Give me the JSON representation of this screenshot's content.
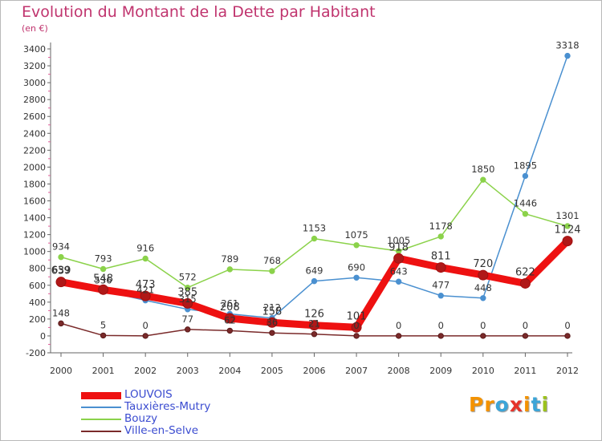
{
  "title": "Evolution du Montant de la Dette par Habitant",
  "subtitle": "(en €)",
  "logo": {
    "letters": [
      "P",
      "r",
      "o",
      "x",
      "i",
      "t",
      "i"
    ],
    "colors": [
      "#f39200",
      "#f39200",
      "#3ba5d8",
      "#e6332a",
      "#f39200",
      "#3ba5d8",
      "#9cc21c"
    ]
  },
  "chart_data": {
    "type": "line",
    "title": "Evolution du Montant de la Dette par Habitant",
    "subtitle": "(en €)",
    "xlabel": "",
    "ylabel": "",
    "x": [
      "2000",
      "2001",
      "2002",
      "2003",
      "2004",
      "2005",
      "2006",
      "2007",
      "2008",
      "2009",
      "2010",
      "2011",
      "2012"
    ],
    "ylim": [
      -200,
      3400
    ],
    "yticks": [
      "-200",
      "0",
      "200",
      "400",
      "600",
      "800",
      "1000",
      "1200",
      "1400",
      "1600",
      "1800",
      "2000",
      "2200",
      "2400",
      "2600",
      "2800",
      "3000",
      "3200",
      "3400"
    ],
    "grid": false,
    "legend_position": "bottom-left",
    "series": [
      {
        "name": "LOUVOIS",
        "color": "#ee1111",
        "values": [
          639,
          548,
          473,
          385,
          208,
          158,
          126,
          101,
          918,
          811,
          720,
          622,
          1124
        ],
        "labels": [
          "639",
          "548",
          "473",
          "385",
          "208",
          "158",
          "126",
          "101",
          "918",
          "811",
          "720",
          "622",
          "1124"
        ]
      },
      {
        "name": "Tauxières-Mutry",
        "color": "#4a90d0",
        "values": [
          659,
          536,
          421,
          315,
          261,
          212,
          649,
          690,
          643,
          477,
          448,
          1895,
          3318
        ],
        "labels": [
          "659",
          "536",
          "421",
          "315",
          "261",
          "212",
          "649",
          "690",
          "643",
          "477",
          "448",
          "1895",
          "3318"
        ]
      },
      {
        "name": "Bouzy",
        "color": "#8bd24a",
        "values": [
          934,
          793,
          916,
          572,
          789,
          768,
          1153,
          1075,
          1005,
          1178,
          1850,
          1446,
          1301
        ],
        "labels": [
          "934",
          "793",
          "916",
          "572",
          "789",
          "768",
          "1153",
          "1075",
          "1005",
          "1178",
          "1850",
          "1446",
          "1301"
        ]
      },
      {
        "name": "Ville-en-Selve",
        "color": "#7a2a2a",
        "values": [
          148,
          5,
          0,
          77,
          62,
          36,
          21,
          0,
          0,
          0,
          0,
          0,
          0
        ],
        "labels": [
          "148",
          "5",
          "0",
          "77",
          "62",
          "36",
          "21",
          "0",
          "0",
          "0",
          "0",
          "0",
          "0"
        ]
      }
    ]
  }
}
